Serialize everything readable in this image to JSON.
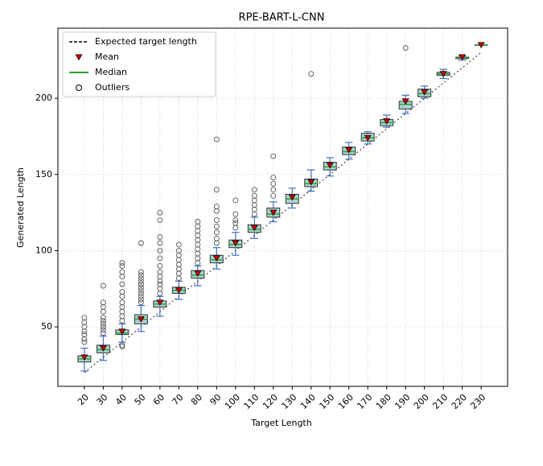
{
  "chart_data": {
    "type": "box",
    "title": "RPE-BART-L-CNN",
    "x_label": "Target Length",
    "y_label": "Generated Length",
    "categories": [
      20,
      30,
      40,
      50,
      60,
      70,
      80,
      90,
      100,
      110,
      120,
      130,
      140,
      150,
      160,
      170,
      180,
      190,
      200,
      210,
      220,
      230
    ],
    "boxes": [
      {
        "low": 21,
        "q1": 27,
        "median": 29,
        "q3": 31,
        "high": 36,
        "mean": 30,
        "outliers": [
          40,
          42,
          45,
          47,
          50,
          53,
          56
        ]
      },
      {
        "low": 28,
        "q1": 33,
        "median": 35,
        "q3": 38,
        "high": 44,
        "mean": 36,
        "outliers": [
          46,
          48,
          50,
          52,
          54,
          56,
          60,
          63,
          66,
          77
        ]
      },
      {
        "low": 40,
        "q1": 45,
        "median": 46,
        "q3": 48,
        "high": 52,
        "mean": 47,
        "outliers": [
          37,
          38,
          54,
          57,
          60,
          63,
          66,
          70,
          73,
          78,
          83,
          86,
          90,
          92
        ]
      },
      {
        "low": 47,
        "q1": 52,
        "median": 55,
        "q3": 58,
        "high": 64,
        "mean": 55,
        "outliers": [
          66,
          68,
          70,
          72,
          74,
          76,
          78,
          80,
          82,
          84,
          86,
          105
        ]
      },
      {
        "low": 57,
        "q1": 63,
        "median": 65,
        "q3": 67,
        "high": 70,
        "mean": 66,
        "outliers": [
          72,
          75,
          78,
          80,
          83,
          86,
          90,
          95,
          100,
          105,
          109,
          120,
          125
        ]
      },
      {
        "low": 68,
        "q1": 72,
        "median": 74,
        "q3": 76,
        "high": 80,
        "mean": 74,
        "outliers": [
          82,
          85,
          88,
          91,
          94,
          97,
          100,
          104
        ]
      },
      {
        "low": 77,
        "q1": 82,
        "median": 84,
        "q3": 87,
        "high": 90,
        "mean": 85,
        "outliers": [
          92,
          95,
          98,
          101,
          104,
          107,
          110,
          113,
          116,
          119
        ]
      },
      {
        "low": 88,
        "q1": 92,
        "median": 94,
        "q3": 97,
        "high": 102,
        "mean": 95,
        "outliers": [
          105,
          108,
          112,
          116,
          120,
          126,
          129,
          140,
          173
        ]
      },
      {
        "low": 97,
        "q1": 102,
        "median": 104,
        "q3": 107,
        "high": 112,
        "mean": 105,
        "outliers": [
          115,
          118,
          120,
          124,
          133
        ]
      },
      {
        "low": 108,
        "q1": 112,
        "median": 114,
        "q3": 117,
        "high": 122,
        "mean": 115,
        "outliers": [
          124,
          127,
          130,
          133,
          136,
          140
        ]
      },
      {
        "low": 119,
        "q1": 122,
        "median": 124,
        "q3": 128,
        "high": 132,
        "mean": 125,
        "outliers": [
          136,
          140,
          144,
          148,
          162
        ]
      },
      {
        "low": 128,
        "q1": 131,
        "median": 134,
        "q3": 137,
        "high": 141,
        "mean": 135,
        "outliers": []
      },
      {
        "low": 139,
        "q1": 142,
        "median": 144,
        "q3": 147,
        "high": 153,
        "mean": 145,
        "outliers": [
          216
        ]
      },
      {
        "low": 149,
        "q1": 153,
        "median": 155,
        "q3": 158,
        "high": 161,
        "mean": 156,
        "outliers": []
      },
      {
        "low": 160,
        "q1": 163,
        "median": 165,
        "q3": 168,
        "high": 171,
        "mean": 166,
        "outliers": []
      },
      {
        "low": 170,
        "q1": 172,
        "median": 174,
        "q3": 177,
        "high": 178,
        "mean": 174,
        "outliers": []
      },
      {
        "low": 181,
        "q1": 182,
        "median": 184,
        "q3": 186,
        "high": 189,
        "mean": 185,
        "outliers": []
      },
      {
        "low": 190,
        "q1": 193,
        "median": 196,
        "q3": 198,
        "high": 202,
        "mean": 198,
        "outliers": [
          233
        ]
      },
      {
        "low": 200,
        "q1": 201,
        "median": 203,
        "q3": 206,
        "high": 208,
        "mean": 204,
        "outliers": []
      },
      {
        "low": 213,
        "q1": 215,
        "median": 216,
        "q3": 217,
        "high": 219,
        "mean": 216,
        "outliers": []
      },
      {
        "low": 225,
        "q1": 226,
        "median": 226.5,
        "q3": 227,
        "high": 228,
        "mean": 227,
        "outliers": []
      },
      {
        "low": 235,
        "q1": 235,
        "median": 235,
        "q3": 235,
        "high": 235,
        "mean": 235,
        "outliers": []
      }
    ],
    "ylim": [
      11,
      246
    ],
    "yticks": [
      50,
      100,
      150,
      200
    ],
    "grid": true,
    "box_color": "#a8d3d6",
    "whisker_color": "#3c6fc8",
    "median_color": "#2ca02c",
    "mean_color": "#c00000",
    "outlier_color": "#555555",
    "expected_color": "#444444",
    "legend": {
      "position": "upper left",
      "entries": [
        "Expected target length",
        "Mean",
        "Median",
        "Outliers"
      ]
    }
  }
}
